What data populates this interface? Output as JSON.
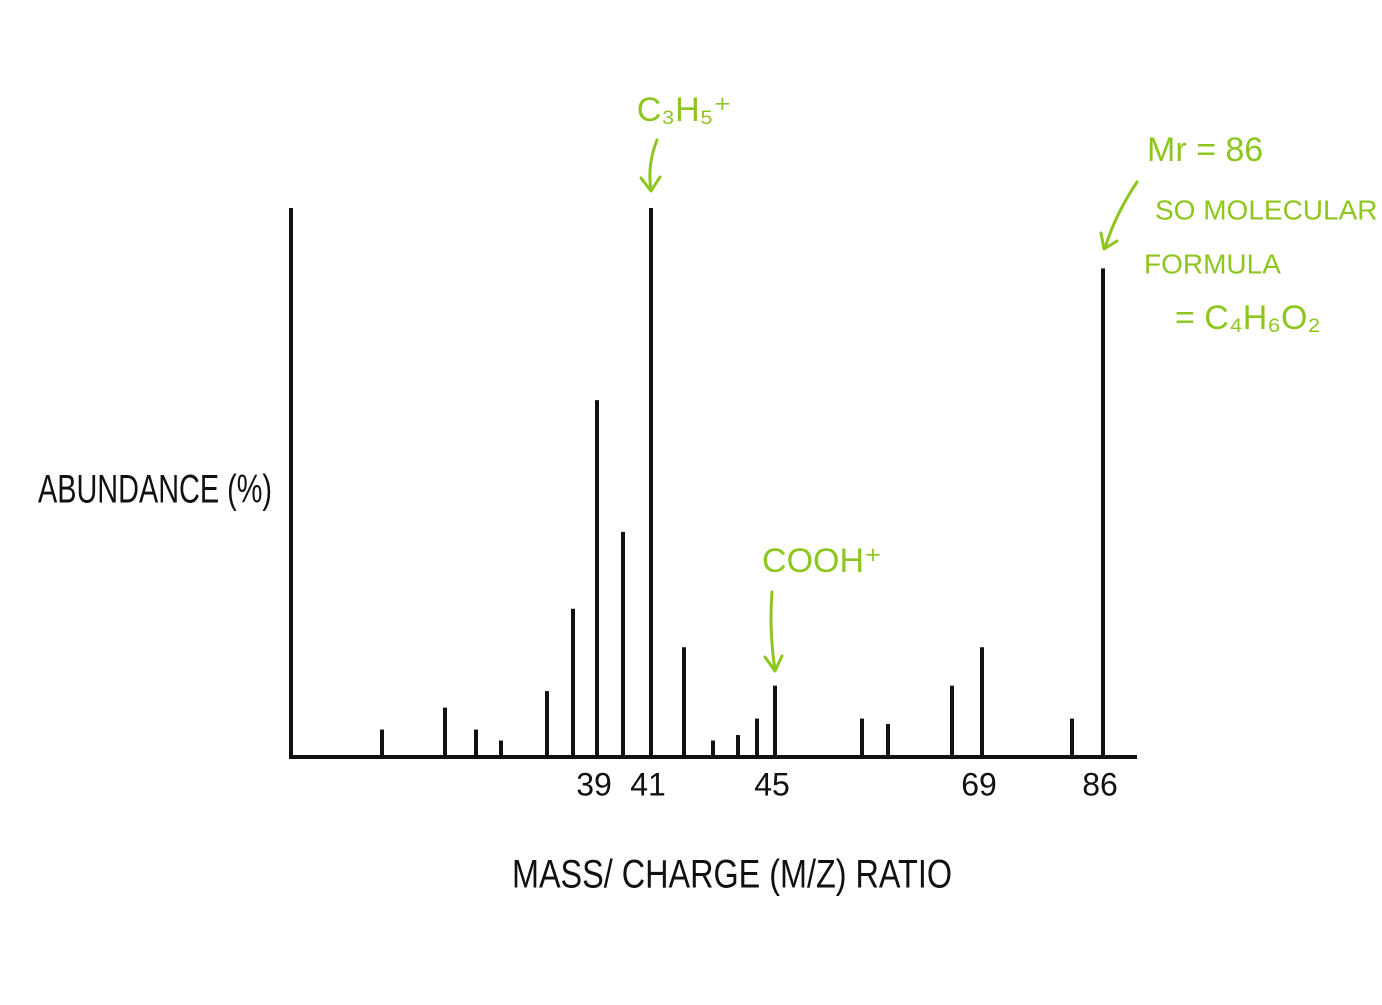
{
  "chart_data": {
    "type": "bar",
    "x_label": "MASS/ CHARGE (M/Z) RATIO",
    "y_label": "ABUNDANCE (%)",
    "categories": [
      null,
      null,
      null,
      null,
      null,
      null,
      "39",
      null,
      "41",
      null,
      null,
      null,
      null,
      "45",
      null,
      null,
      null,
      "69",
      null,
      "86"
    ],
    "values": [
      5,
      9,
      5,
      3,
      12,
      27,
      65,
      41,
      100,
      20,
      3,
      4,
      7,
      13,
      7,
      6,
      13,
      20,
      7,
      89
    ],
    "color": "#111111",
    "ylim": [
      0,
      100
    ],
    "annotations": [
      "C₃H₅⁺",
      "COOH⁺",
      "Mr = 86",
      "SO MOLECULAR",
      "FORMULA",
      "= C₄H₆O₂"
    ],
    "annotation_color": "#8dc61e"
  }
}
